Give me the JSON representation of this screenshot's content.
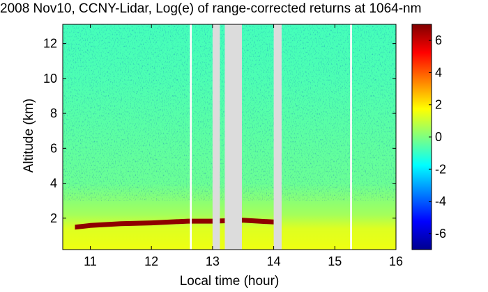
{
  "chart_data": {
    "type": "heatmap",
    "title": "2008 Nov10, CCNY-Lidar, Log(e) of range-corrected returns at 1064-nm",
    "xlabel": "Local time (hour)",
    "ylabel": "Altitude (km)",
    "xlim": [
      10.55,
      16.0
    ],
    "ylim": [
      0.2,
      13.1
    ],
    "x_ticks": [
      "11",
      "12",
      "13",
      "14",
      "15",
      "16"
    ],
    "y_ticks": [
      "2",
      "4",
      "6",
      "8",
      "10",
      "12"
    ],
    "colorbar": {
      "range": [
        -7,
        7
      ],
      "ticks": [
        "6",
        "4",
        "2",
        "0",
        "-2",
        "-4",
        "-6"
      ],
      "colormap": "jet"
    },
    "data_gaps_hours": [
      [
        12.63,
        12.66
      ],
      [
        13.0,
        13.12
      ],
      [
        13.2,
        13.48
      ],
      [
        14.0,
        14.13
      ],
      [
        15.25,
        15.28
      ]
    ],
    "cloud_layer": {
      "altitude_km": [
        [
          10.75,
          1.5
        ],
        [
          11.0,
          1.6
        ],
        [
          11.5,
          1.7
        ],
        [
          12.0,
          1.75
        ],
        [
          12.6,
          1.85
        ],
        [
          13.0,
          1.85
        ],
        [
          13.5,
          1.9
        ],
        [
          14.0,
          1.8
        ]
      ],
      "ends_hour": 14.0
    },
    "profile_levels": [
      {
        "altitude_km": 0.3,
        "value": 1.5
      },
      {
        "altitude_km": 1.4,
        "value": 1.3
      },
      {
        "altitude_km": 2.2,
        "value": 0.5
      },
      {
        "altitude_km": 4.0,
        "value": -0.3
      },
      {
        "altitude_km": 7.0,
        "value": -0.5
      },
      {
        "altitude_km": 10.0,
        "value": -0.7
      },
      {
        "altitude_km": 13.0,
        "value": -0.8
      }
    ]
  }
}
